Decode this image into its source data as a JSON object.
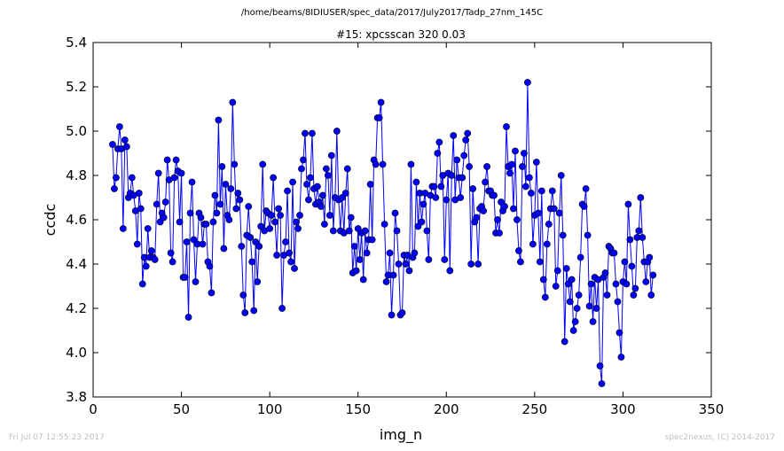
{
  "figure": {
    "suptitle": "/home/beams/8IDIUSER/spec_data/2017/July2017/Tadp_27nm_145C",
    "footer_left": "Fri Jul 07 12:55:23 2017",
    "footer_right": "spec2nexus, (C) 2014-2017"
  },
  "chart_data": {
    "type": "line",
    "title": "#15: xpcsscan 320 0.03",
    "xlabel": "img_n",
    "ylabel": "ccdc",
    "xlim": [
      0,
      350
    ],
    "ylim": [
      3.8,
      5.4
    ],
    "xticks": [
      "0",
      "50",
      "100",
      "150",
      "200",
      "250",
      "300",
      "350"
    ],
    "yticks": [
      "3.8",
      "4.0",
      "4.2",
      "4.4",
      "4.6",
      "4.8",
      "5.0",
      "5.2",
      "5.4"
    ],
    "grid": false,
    "marker": "circle",
    "colors": {
      "series": "#0000ff"
    },
    "series": [
      {
        "x_start": 11,
        "x_step": 1,
        "values": [
          4.94,
          4.74,
          4.79,
          4.92,
          5.02,
          4.92,
          4.56,
          4.96,
          4.93,
          4.7,
          4.72,
          4.79,
          4.71,
          4.64,
          4.49,
          4.72,
          4.65,
          4.31,
          4.43,
          4.39,
          4.56,
          4.43,
          4.46,
          4.43,
          4.42,
          4.67,
          4.81,
          4.59,
          4.63,
          4.61,
          4.68,
          4.87,
          4.78,
          4.45,
          4.41,
          4.79,
          4.87,
          4.82,
          4.59,
          4.81,
          4.34,
          4.34,
          4.5,
          4.16,
          4.63,
          4.77,
          4.51,
          4.32,
          4.49,
          4.63,
          4.61,
          4.49,
          4.58,
          4.58,
          4.41,
          4.39,
          4.27,
          4.59,
          4.71,
          4.63,
          5.05,
          4.67,
          4.84,
          4.47,
          4.76,
          4.62,
          4.6,
          4.74,
          5.13,
          4.85,
          4.65,
          4.72,
          4.69,
          4.48,
          4.26,
          4.18,
          4.53,
          4.66,
          4.52,
          4.41,
          4.19,
          4.5,
          4.32,
          4.48,
          4.57,
          4.85,
          4.55,
          4.64,
          4.63,
          4.56,
          4.62,
          4.79,
          4.59,
          4.44,
          4.65,
          4.62,
          4.2,
          4.44,
          4.5,
          4.73,
          4.45,
          4.41,
          4.77,
          4.38,
          4.59,
          4.56,
          4.62,
          4.83,
          4.87,
          4.99,
          4.76,
          4.69,
          4.79,
          4.99,
          4.74,
          4.67,
          4.75,
          4.68,
          4.66,
          4.71,
          4.58,
          4.83,
          4.8,
          4.62,
          4.89,
          4.55,
          4.7,
          5.0,
          4.69,
          4.55,
          4.7,
          4.54,
          4.72,
          4.83,
          4.55,
          4.61,
          4.36,
          4.48,
          4.37,
          4.56,
          4.42,
          4.54,
          4.33,
          4.55,
          4.45,
          4.51,
          4.76,
          4.51,
          4.87,
          4.85,
          5.06,
          5.06,
          5.13,
          4.85,
          4.58,
          4.32,
          4.35,
          4.45,
          4.17,
          4.35,
          4.63,
          4.55,
          4.4,
          4.17,
          4.18,
          4.44,
          4.4,
          4.44,
          4.37,
          4.85,
          4.43,
          4.45,
          4.77,
          4.57,
          4.72,
          4.59,
          4.67,
          4.72,
          4.55,
          4.42,
          4.71,
          4.75,
          4.75,
          4.7,
          4.9,
          4.95,
          4.75,
          4.8,
          4.42,
          4.69,
          4.81,
          4.37,
          4.8,
          4.98,
          4.69,
          4.87,
          4.79,
          4.7,
          4.79,
          4.89,
          4.96,
          4.99,
          4.84,
          4.4,
          4.74,
          4.59,
          4.61,
          4.4,
          4.65,
          4.66,
          4.64,
          4.77,
          4.84,
          4.73,
          4.73,
          4.71,
          4.71,
          4.54,
          4.6,
          4.54,
          4.68,
          4.64,
          4.66,
          5.02,
          4.84,
          4.81,
          4.85,
          4.65,
          4.91,
          4.6,
          4.46,
          4.41,
          4.84,
          4.9,
          4.75,
          5.22,
          4.79,
          4.72,
          4.49,
          4.62,
          4.86,
          4.63,
          4.41,
          4.73,
          4.33,
          4.25,
          4.49,
          4.58,
          4.65,
          4.73,
          4.65,
          4.3,
          4.37,
          4.63,
          4.8,
          4.53,
          4.05,
          4.38,
          4.31,
          4.23,
          4.33,
          4.1,
          4.14,
          4.2,
          4.26,
          4.43,
          4.67,
          4.66,
          4.74,
          4.53,
          4.21,
          4.31,
          4.14,
          4.34,
          4.2,
          4.33,
          3.94,
          3.86,
          4.34,
          4.36,
          4.26,
          4.48,
          4.47,
          4.45,
          4.45,
          4.31,
          4.23,
          4.09,
          3.98,
          4.32,
          4.41,
          4.31,
          4.67,
          4.51,
          4.39,
          4.26,
          4.29,
          4.52,
          4.55,
          4.7,
          4.52,
          4.41,
          4.32,
          4.41,
          4.43,
          4.26,
          4.35
        ]
      }
    ]
  }
}
